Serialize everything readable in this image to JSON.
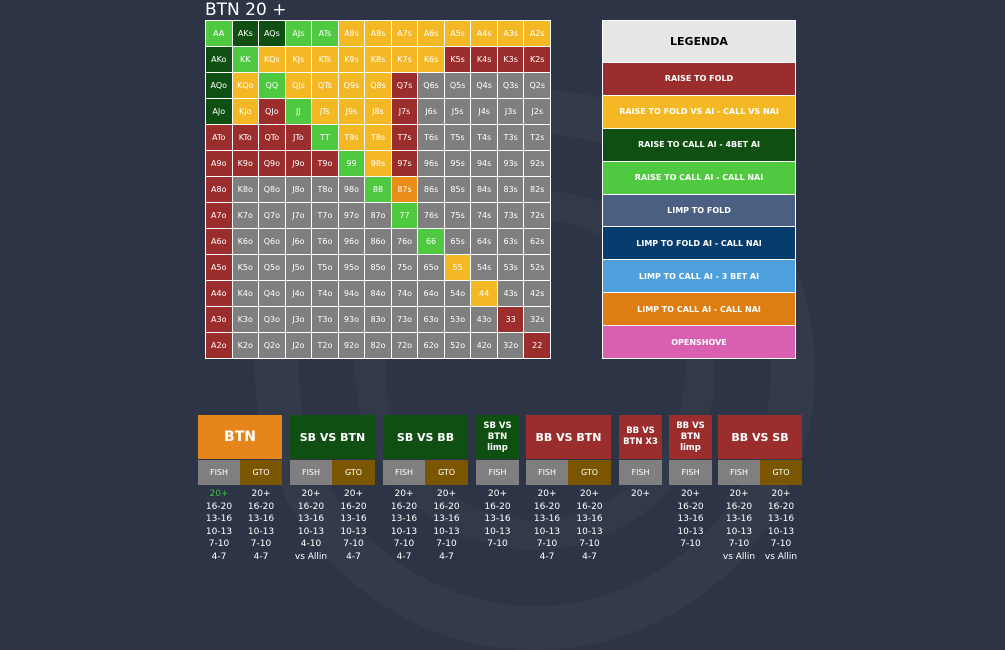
{
  "title": "BTN 20 +",
  "colors": {
    "R": "#9b2d2d",
    "Y": "#f4b825",
    "D": "#0f5012",
    "G": "#4fc93f",
    "O": "#ea8d16",
    "N": "#7f7f7f"
  },
  "grid": {
    "rows": [
      [
        [
          "AA",
          "G"
        ],
        [
          "AKs",
          "D"
        ],
        [
          "AQs",
          "D"
        ],
        [
          "AJs",
          "G"
        ],
        [
          "ATs",
          "G"
        ],
        [
          "A9s",
          "Y"
        ],
        [
          "A8s",
          "Y"
        ],
        [
          "A7s",
          "Y"
        ],
        [
          "A6s",
          "Y"
        ],
        [
          "A5s",
          "Y"
        ],
        [
          "A4s",
          "Y"
        ],
        [
          "A3s",
          "Y"
        ],
        [
          "A2s",
          "Y"
        ]
      ],
      [
        [
          "AKo",
          "D"
        ],
        [
          "KK",
          "G"
        ],
        [
          "KQs",
          "Y"
        ],
        [
          "KJs",
          "Y"
        ],
        [
          "KTs",
          "Y"
        ],
        [
          "K9s",
          "Y"
        ],
        [
          "K8s",
          "Y"
        ],
        [
          "K7s",
          "Y"
        ],
        [
          "K6s",
          "Y"
        ],
        [
          "K5s",
          "R"
        ],
        [
          "K4s",
          "R"
        ],
        [
          "K3s",
          "R"
        ],
        [
          "K2s",
          "R"
        ]
      ],
      [
        [
          "AQo",
          "D"
        ],
        [
          "KQo",
          "Y"
        ],
        [
          "QQ",
          "G"
        ],
        [
          "QJs",
          "Y"
        ],
        [
          "QTs",
          "Y"
        ],
        [
          "Q9s",
          "Y"
        ],
        [
          "Q8s",
          "Y"
        ],
        [
          "Q7s",
          "R"
        ],
        [
          "Q6s",
          "N"
        ],
        [
          "Q5s",
          "N"
        ],
        [
          "Q4s",
          "N"
        ],
        [
          "Q3s",
          "N"
        ],
        [
          "Q2s",
          "N"
        ]
      ],
      [
        [
          "AJo",
          "D"
        ],
        [
          "KJo",
          "Y"
        ],
        [
          "QJo",
          "R"
        ],
        [
          "JJ",
          "G"
        ],
        [
          "JTs",
          "Y"
        ],
        [
          "J9s",
          "Y"
        ],
        [
          "J8s",
          "Y"
        ],
        [
          "J7s",
          "R"
        ],
        [
          "J6s",
          "N"
        ],
        [
          "J5s",
          "N"
        ],
        [
          "J4s",
          "N"
        ],
        [
          "J3s",
          "N"
        ],
        [
          "J2s",
          "N"
        ]
      ],
      [
        [
          "ATo",
          "R"
        ],
        [
          "KTo",
          "R"
        ],
        [
          "QTo",
          "R"
        ],
        [
          "JTo",
          "R"
        ],
        [
          "TT",
          "G"
        ],
        [
          "T9s",
          "Y"
        ],
        [
          "T8s",
          "Y"
        ],
        [
          "T7s",
          "R"
        ],
        [
          "T6s",
          "N"
        ],
        [
          "T5s",
          "N"
        ],
        [
          "T4s",
          "N"
        ],
        [
          "T3s",
          "N"
        ],
        [
          "T2s",
          "N"
        ]
      ],
      [
        [
          "A9o",
          "R"
        ],
        [
          "K9o",
          "R"
        ],
        [
          "Q9o",
          "R"
        ],
        [
          "J9o",
          "R"
        ],
        [
          "T9o",
          "R"
        ],
        [
          "99",
          "G"
        ],
        [
          "98s",
          "Y"
        ],
        [
          "97s",
          "R"
        ],
        [
          "96s",
          "N"
        ],
        [
          "95s",
          "N"
        ],
        [
          "94s",
          "N"
        ],
        [
          "93s",
          "N"
        ],
        [
          "92s",
          "N"
        ]
      ],
      [
        [
          "A8o",
          "R"
        ],
        [
          "K8o",
          "N"
        ],
        [
          "Q8o",
          "N"
        ],
        [
          "J8o",
          "N"
        ],
        [
          "T8o",
          "N"
        ],
        [
          "98o",
          "N"
        ],
        [
          "88",
          "G"
        ],
        [
          "87s",
          "O"
        ],
        [
          "86s",
          "N"
        ],
        [
          "85s",
          "N"
        ],
        [
          "84s",
          "N"
        ],
        [
          "83s",
          "N"
        ],
        [
          "82s",
          "N"
        ]
      ],
      [
        [
          "A7o",
          "R"
        ],
        [
          "K7o",
          "N"
        ],
        [
          "Q7o",
          "N"
        ],
        [
          "J7o",
          "N"
        ],
        [
          "T7o",
          "N"
        ],
        [
          "97o",
          "N"
        ],
        [
          "87o",
          "N"
        ],
        [
          "77",
          "G"
        ],
        [
          "76s",
          "N"
        ],
        [
          "75s",
          "N"
        ],
        [
          "74s",
          "N"
        ],
        [
          "73s",
          "N"
        ],
        [
          "72s",
          "N"
        ]
      ],
      [
        [
          "A6o",
          "R"
        ],
        [
          "K6o",
          "N"
        ],
        [
          "Q6o",
          "N"
        ],
        [
          "J6o",
          "N"
        ],
        [
          "T6o",
          "N"
        ],
        [
          "96o",
          "N"
        ],
        [
          "86o",
          "N"
        ],
        [
          "76o",
          "N"
        ],
        [
          "66",
          "G"
        ],
        [
          "65s",
          "N"
        ],
        [
          "64s",
          "N"
        ],
        [
          "63s",
          "N"
        ],
        [
          "62s",
          "N"
        ]
      ],
      [
        [
          "A5o",
          "R"
        ],
        [
          "K5o",
          "N"
        ],
        [
          "Q5o",
          "N"
        ],
        [
          "J5o",
          "N"
        ],
        [
          "T5o",
          "N"
        ],
        [
          "95o",
          "N"
        ],
        [
          "85o",
          "N"
        ],
        [
          "75o",
          "N"
        ],
        [
          "65o",
          "N"
        ],
        [
          "55",
          "Y"
        ],
        [
          "54s",
          "N"
        ],
        [
          "53s",
          "N"
        ],
        [
          "52s",
          "N"
        ]
      ],
      [
        [
          "A4o",
          "R"
        ],
        [
          "K4o",
          "N"
        ],
        [
          "Q4o",
          "N"
        ],
        [
          "J4o",
          "N"
        ],
        [
          "T4o",
          "N"
        ],
        [
          "94o",
          "N"
        ],
        [
          "84o",
          "N"
        ],
        [
          "74o",
          "N"
        ],
        [
          "64o",
          "N"
        ],
        [
          "54o",
          "N"
        ],
        [
          "44",
          "Y"
        ],
        [
          "43s",
          "N"
        ],
        [
          "42s",
          "N"
        ]
      ],
      [
        [
          "A3o",
          "R"
        ],
        [
          "K3o",
          "N"
        ],
        [
          "Q3o",
          "N"
        ],
        [
          "J3o",
          "N"
        ],
        [
          "T3o",
          "N"
        ],
        [
          "93o",
          "N"
        ],
        [
          "83o",
          "N"
        ],
        [
          "73o",
          "N"
        ],
        [
          "63o",
          "N"
        ],
        [
          "53o",
          "N"
        ],
        [
          "43o",
          "N"
        ],
        [
          "33",
          "R"
        ],
        [
          "32s",
          "N"
        ]
      ],
      [
        [
          "A2o",
          "R"
        ],
        [
          "K2o",
          "N"
        ],
        [
          "Q2o",
          "N"
        ],
        [
          "J2o",
          "N"
        ],
        [
          "T2o",
          "N"
        ],
        [
          "92o",
          "N"
        ],
        [
          "82o",
          "N"
        ],
        [
          "72o",
          "N"
        ],
        [
          "62o",
          "N"
        ],
        [
          "52o",
          "N"
        ],
        [
          "42o",
          "N"
        ],
        [
          "32o",
          "N"
        ],
        [
          "22",
          "R"
        ]
      ]
    ]
  },
  "legend": {
    "title": "LEGENDA",
    "items": [
      {
        "label": "RAISE TO FOLD",
        "color": "#9b2d2d"
      },
      {
        "label": "RAISE TO FOLD VS AI - CALL VS NAI",
        "color": "#f4b825"
      },
      {
        "label": "RAISE TO CALL AI - 4BET AI",
        "color": "#0f5012"
      },
      {
        "label": "RAISE TO CALL AI - CALL NAI",
        "color": "#4fc93f"
      },
      {
        "label": "LIMP TO FOLD",
        "color": "#4b5f83"
      },
      {
        "label": "LIMP TO FOLD AI - CALL NAI",
        "color": "#063d6e"
      },
      {
        "label": "LIMP TO CALL AI - 3 BET AI",
        "color": "#4ea0dc"
      },
      {
        "label": "LIMP TO CALL AI - CALL NAI",
        "color": "#de7d12"
      },
      {
        "label": "OPENSHOVE",
        "color": "#d960b0"
      }
    ]
  },
  "tabs": [
    {
      "label": "BTN",
      "color": "#e6861a",
      "subs": [
        {
          "name": "FISH",
          "items": [
            "20+",
            "16-20",
            "13-16",
            "10-13",
            "7-10",
            "4-7"
          ],
          "active": 0
        },
        {
          "name": "GTO",
          "items": [
            "20+",
            "16-20",
            "13-16",
            "10-13",
            "7-10",
            "4-7"
          ]
        }
      ]
    },
    {
      "label": "SB VS BTN",
      "color": "#0f5012",
      "subs": [
        {
          "name": "FISH",
          "items": [
            "20+",
            "16-20",
            "13-16",
            "10-13",
            "4-10",
            "vs Allin"
          ]
        },
        {
          "name": "GTO",
          "items": [
            "20+",
            "16-20",
            "13-16",
            "10-13",
            "7-10",
            "4-7"
          ]
        }
      ]
    },
    {
      "label": "SB VS BB",
      "color": "#0f5012",
      "subs": [
        {
          "name": "FISH",
          "items": [
            "20+",
            "16-20",
            "13-16",
            "10-13",
            "7-10",
            "4-7"
          ]
        },
        {
          "name": "GTO",
          "items": [
            "20+",
            "16-20",
            "13-16",
            "10-13",
            "7-10",
            "4-7"
          ]
        }
      ]
    },
    {
      "label": "SB VS BTN limp",
      "color": "#0f5012",
      "subs": [
        {
          "name": "FISH",
          "items": [
            "20+",
            "16-20",
            "13-16",
            "10-13",
            "7-10"
          ]
        }
      ]
    },
    {
      "label": "BB VS BTN",
      "color": "#9b2d2d",
      "subs": [
        {
          "name": "FISH",
          "items": [
            "20+",
            "16-20",
            "13-16",
            "10-13",
            "7-10",
            "4-7"
          ]
        },
        {
          "name": "GTO",
          "items": [
            "20+",
            "16-20",
            "13-16",
            "10-13",
            "7-10",
            "4-7"
          ]
        }
      ]
    },
    {
      "label": "BB VS BTN X3",
      "color": "#9b2d2d",
      "subs": [
        {
          "name": "FISH",
          "items": [
            "20+"
          ]
        }
      ]
    },
    {
      "label": "BB VS BTN limp",
      "color": "#9b2d2d",
      "subs": [
        {
          "name": "FISH",
          "items": [
            "20+",
            "16-20",
            "13-16",
            "10-13",
            "7-10"
          ]
        }
      ]
    },
    {
      "label": "BB VS SB",
      "color": "#9b2d2d",
      "subs": [
        {
          "name": "FISH",
          "items": [
            "20+",
            "16-20",
            "13-16",
            "10-13",
            "7-10",
            "vs Allin"
          ]
        },
        {
          "name": "GTO",
          "items": [
            "20+",
            "16-20",
            "13-16",
            "10-13",
            "7-10",
            "vs Allin"
          ]
        }
      ]
    }
  ]
}
